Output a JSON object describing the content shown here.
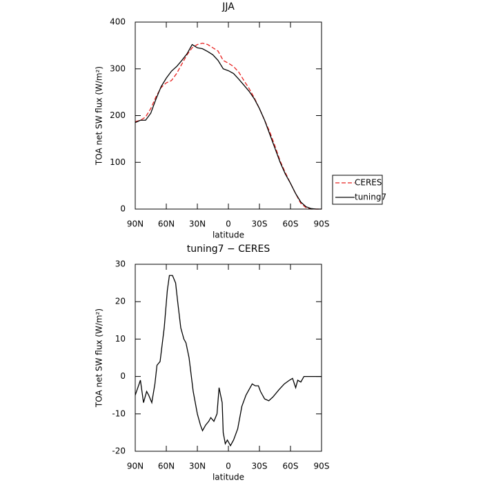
{
  "chart_data": [
    {
      "type": "line",
      "title": "JJA",
      "x_label": "latitude",
      "y_label": "TOA net SW flux (W/m²)",
      "x": [
        90,
        85,
        80,
        75,
        70,
        65,
        60,
        55,
        50,
        45,
        40,
        35,
        30,
        25,
        20,
        15,
        10,
        5,
        0,
        -5,
        -10,
        -15,
        -20,
        -25,
        -30,
        -35,
        -40,
        -45,
        -50,
        -55,
        -60,
        -65,
        -70,
        -75,
        -80,
        -85,
        -90
      ],
      "series": [
        {
          "name": "CERES",
          "color": "#e8201e",
          "dash": true,
          "values": [
            187,
            190,
            197,
            215,
            240,
            260,
            270,
            275,
            290,
            310,
            330,
            345,
            352,
            355,
            352,
            345,
            338,
            318,
            312,
            305,
            293,
            275,
            258,
            238,
            215,
            190,
            165,
            135,
            103,
            78,
            55,
            33,
            12,
            3,
            0,
            0,
            0
          ]
        },
        {
          "name": "tuning7",
          "color": "#000000",
          "dash": false,
          "values": [
            185,
            190,
            190,
            205,
            235,
            262,
            280,
            295,
            305,
            318,
            332,
            352,
            345,
            343,
            337,
            330,
            318,
            300,
            296,
            290,
            278,
            265,
            252,
            236,
            215,
            190,
            160,
            130,
            100,
            75,
            55,
            33,
            15,
            5,
            1,
            0,
            0
          ]
        }
      ],
      "xlim": [
        90,
        -90
      ],
      "xticks": [
        {
          "value": 90,
          "label": "90N"
        },
        {
          "value": 60,
          "label": "60N"
        },
        {
          "value": 30,
          "label": "30N"
        },
        0,
        {
          "value": -30,
          "label": "30S"
        },
        {
          "value": -60,
          "label": "60S"
        },
        {
          "value": -90,
          "label": "90S"
        }
      ],
      "ylim": [
        0,
        400
      ],
      "yticks": [
        0,
        100,
        200,
        300,
        400
      ],
      "legend": "right"
    },
    {
      "type": "line",
      "title": "tuning7 − CERES",
      "x_label": "latitude",
      "y_label": "TOA net SW flux (W/m²)",
      "x": [
        90,
        85,
        82,
        79,
        77,
        74,
        71,
        69,
        66,
        62,
        59,
        57,
        54,
        51,
        49,
        46,
        43,
        41,
        38,
        34,
        30,
        27,
        25,
        22,
        19,
        17,
        14,
        11,
        9,
        6,
        5,
        3,
        1,
        -2,
        -5,
        -9,
        -13,
        -17,
        -21,
        -23,
        -26,
        -29,
        -31,
        -35,
        -39,
        -43,
        -49,
        -54,
        -59,
        -62,
        -65,
        -67,
        -70,
        -73,
        -79,
        -90
      ],
      "series": [
        {
          "name": "tuning7 − CERES",
          "color": "#000000",
          "dash": false,
          "values": [
            -5,
            -1,
            -7,
            -4,
            -5,
            -7,
            -2,
            3,
            4,
            13,
            23,
            27,
            27,
            25,
            20,
            13,
            10,
            9,
            5,
            -4,
            -10,
            -13,
            -14.5,
            -13,
            -12,
            -11,
            -12,
            -10,
            -3,
            -7,
            -15,
            -18,
            -17,
            -18.5,
            -17,
            -14,
            -8,
            -5,
            -3,
            -2,
            -2.5,
            -2.5,
            -4,
            -6,
            -6.5,
            -5.5,
            -3.5,
            -2,
            -1,
            -0.5,
            -3,
            -1,
            -1.5,
            0,
            0,
            0
          ]
        }
      ],
      "xlim": [
        90,
        -90
      ],
      "xticks": [
        {
          "value": 90,
          "label": "90N"
        },
        {
          "value": 60,
          "label": "60N"
        },
        {
          "value": 30,
          "label": "30N"
        },
        0,
        {
          "value": -30,
          "label": "30S"
        },
        {
          "value": -60,
          "label": "60S"
        },
        {
          "value": -90,
          "label": "90S"
        }
      ],
      "ylim": [
        -20,
        30
      ],
      "yticks": [
        -20,
        -10,
        0,
        10,
        20,
        30
      ]
    }
  ]
}
